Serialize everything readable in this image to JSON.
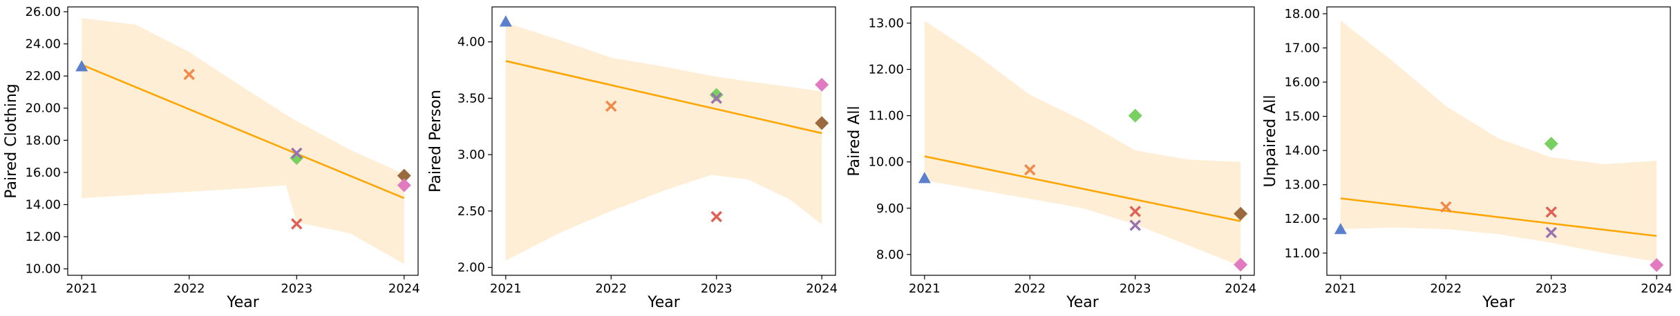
{
  "chart_data": [
    {
      "type": "scatter",
      "xlabel": "Year",
      "ylabel": "Paired Clothing",
      "x_ticks": [
        "2021",
        "2022",
        "2023",
        "2024"
      ],
      "y_ticks": [
        "10.00",
        "12.00",
        "14.00",
        "16.00",
        "18.00",
        "20.00",
        "22.00",
        "24.00",
        "26.00"
      ],
      "ylim": [
        9.6,
        26.3
      ],
      "points": [
        {
          "x": 2021,
          "y": 22.6,
          "marker": "triangle",
          "color": "#5b7fcc"
        },
        {
          "x": 2022,
          "y": 22.1,
          "marker": "x",
          "color": "#ef8a4b"
        },
        {
          "x": 2023,
          "y": 16.9,
          "marker": "diamond",
          "color": "#77d05f"
        },
        {
          "x": 2023,
          "y": 17.2,
          "marker": "x",
          "color": "#9b72b0"
        },
        {
          "x": 2023,
          "y": 12.8,
          "marker": "x",
          "color": "#e06055"
        },
        {
          "x": 2024,
          "y": 15.8,
          "marker": "diamond",
          "color": "#9a6a3e"
        },
        {
          "x": 2024,
          "y": 15.2,
          "marker": "diamond",
          "color": "#e17ac1"
        }
      ],
      "trend": {
        "x": [
          2021,
          2024
        ],
        "y": [
          22.7,
          14.4
        ]
      },
      "band": [
        [
          2021,
          14.4,
          25.6
        ],
        [
          2021.5,
          14.6,
          25.2
        ],
        [
          2022,
          14.8,
          23.5
        ],
        [
          2022.5,
          15.0,
          21.3
        ],
        [
          2022.9,
          15.2,
          19.6
        ],
        [
          2023,
          12.9,
          19.2
        ],
        [
          2023.5,
          12.2,
          17.4
        ],
        [
          2024,
          10.3,
          15.9
        ]
      ]
    },
    {
      "type": "scatter",
      "xlabel": "Year",
      "ylabel": "Paired Person",
      "x_ticks": [
        "2021",
        "2022",
        "2023",
        "2024"
      ],
      "y_ticks": [
        "2.00",
        "2.50",
        "3.00",
        "3.50",
        "4.00"
      ],
      "ylim": [
        1.93,
        4.31
      ],
      "points": [
        {
          "x": 2021,
          "y": 4.18,
          "marker": "triangle",
          "color": "#5b7fcc"
        },
        {
          "x": 2022,
          "y": 3.43,
          "marker": "x",
          "color": "#ef8a4b"
        },
        {
          "x": 2023,
          "y": 3.53,
          "marker": "diamond",
          "color": "#77d05f"
        },
        {
          "x": 2023,
          "y": 3.5,
          "marker": "x",
          "color": "#9b72b0"
        },
        {
          "x": 2023,
          "y": 2.45,
          "marker": "x",
          "color": "#e06055"
        },
        {
          "x": 2024,
          "y": 3.28,
          "marker": "diamond",
          "color": "#9a6a3e"
        },
        {
          "x": 2024,
          "y": 3.62,
          "marker": "diamond",
          "color": "#e17ac1"
        }
      ],
      "trend": {
        "x": [
          2021,
          2024
        ],
        "y": [
          3.83,
          3.19
        ]
      },
      "band": [
        [
          2021,
          2.06,
          4.17
        ],
        [
          2021.5,
          2.3,
          4.02
        ],
        [
          2022,
          2.5,
          3.86
        ],
        [
          2022.5,
          2.68,
          3.78
        ],
        [
          2022.95,
          2.82,
          3.7
        ],
        [
          2023.3,
          2.78,
          3.65
        ],
        [
          2023.7,
          2.6,
          3.6
        ],
        [
          2024,
          2.38,
          3.56
        ]
      ]
    },
    {
      "type": "scatter",
      "xlabel": "Year",
      "ylabel": "Paired All",
      "x_ticks": [
        "2021",
        "2022",
        "2023",
        "2024"
      ],
      "y_ticks": [
        "8.00",
        "9.00",
        "10.00",
        "11.00",
        "12.00",
        "13.00"
      ],
      "ylim": [
        7.55,
        13.35
      ],
      "points": [
        {
          "x": 2021,
          "y": 9.65,
          "marker": "triangle",
          "color": "#5b7fcc"
        },
        {
          "x": 2022,
          "y": 9.83,
          "marker": "x",
          "color": "#ef8a4b"
        },
        {
          "x": 2023,
          "y": 11.0,
          "marker": "diamond",
          "color": "#77d05f"
        },
        {
          "x": 2023,
          "y": 8.93,
          "marker": "x",
          "color": "#e06055"
        },
        {
          "x": 2023,
          "y": 8.63,
          "marker": "x",
          "color": "#9b72b0"
        },
        {
          "x": 2024,
          "y": 8.88,
          "marker": "diamond",
          "color": "#9a6a3e"
        },
        {
          "x": 2024,
          "y": 7.78,
          "marker": "diamond",
          "color": "#e17ac1"
        }
      ],
      "trend": {
        "x": [
          2021,
          2024
        ],
        "y": [
          10.12,
          8.72
        ]
      },
      "band": [
        [
          2021,
          9.6,
          13.05
        ],
        [
          2021.5,
          9.4,
          12.3
        ],
        [
          2022,
          9.2,
          11.45
        ],
        [
          2022.5,
          9.0,
          10.9
        ],
        [
          2023,
          8.65,
          10.25
        ],
        [
          2023.5,
          8.2,
          10.05
        ],
        [
          2024,
          7.75,
          10.0
        ]
      ]
    },
    {
      "type": "scatter",
      "xlabel": "Year",
      "ylabel": "Unpaired All",
      "x_ticks": [
        "2021",
        "2022",
        "2023",
        "2024"
      ],
      "y_ticks": [
        "11.00",
        "12.00",
        "13.00",
        "14.00",
        "15.00",
        "16.00",
        "17.00",
        "18.00"
      ],
      "ylim": [
        10.35,
        18.2
      ],
      "points": [
        {
          "x": 2021,
          "y": 11.7,
          "marker": "triangle",
          "color": "#5b7fcc"
        },
        {
          "x": 2022,
          "y": 12.35,
          "marker": "x",
          "color": "#ef8a4b"
        },
        {
          "x": 2023,
          "y": 14.2,
          "marker": "diamond",
          "color": "#77d05f"
        },
        {
          "x": 2023,
          "y": 12.2,
          "marker": "x",
          "color": "#e06055"
        },
        {
          "x": 2023,
          "y": 11.6,
          "marker": "x",
          "color": "#9b72b0"
        },
        {
          "x": 2024,
          "y": 10.65,
          "marker": "diamond",
          "color": "#e17ac1"
        }
      ],
      "trend": {
        "x": [
          2021,
          2024
        ],
        "y": [
          12.6,
          11.5
        ]
      },
      "band": [
        [
          2021,
          11.7,
          17.8
        ],
        [
          2021.5,
          11.75,
          16.6
        ],
        [
          2022,
          11.7,
          15.3
        ],
        [
          2022.5,
          11.55,
          14.35
        ],
        [
          2023,
          11.3,
          13.8
        ],
        [
          2023.5,
          11.0,
          13.6
        ],
        [
          2024,
          10.75,
          13.7
        ]
      ]
    }
  ],
  "colors": {
    "trend": "#ffa500",
    "band": "#ffeed6"
  }
}
